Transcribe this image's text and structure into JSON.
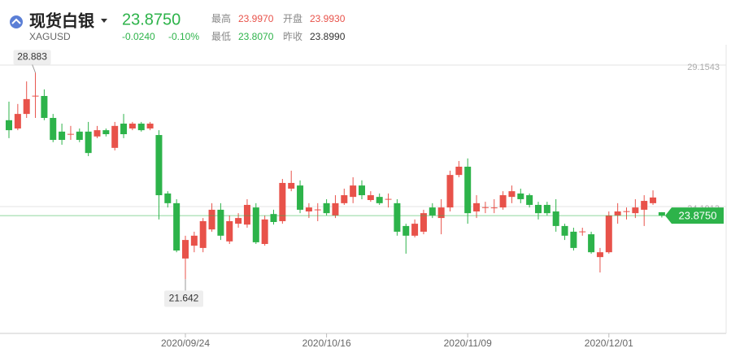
{
  "header": {
    "title": "现货白银",
    "symbol": "XAGUSD",
    "price": "23.8750",
    "change": "-0.0240",
    "change_pct": "-0.10%",
    "high_label": "最高",
    "high": "23.9970",
    "open_label": "开盘",
    "open": "23.9930",
    "low_label": "最低",
    "low": "23.8070",
    "prev_close_label": "昨收",
    "prev_close": "23.8990"
  },
  "chart_data": {
    "type": "candlestick",
    "categories": [
      null,
      null,
      null,
      null,
      null,
      null,
      null,
      null,
      null,
      null,
      null,
      null,
      null,
      null,
      null,
      null,
      null,
      null,
      null,
      null,
      "2020/09/24",
      null,
      null,
      null,
      null,
      null,
      null,
      null,
      null,
      null,
      null,
      null,
      null,
      null,
      null,
      null,
      "2020/10/16",
      null,
      null,
      null,
      null,
      null,
      null,
      null,
      null,
      null,
      null,
      null,
      null,
      null,
      null,
      null,
      "2020/11/09",
      null,
      null,
      null,
      null,
      null,
      null,
      null,
      null,
      null,
      null,
      null,
      null,
      null,
      null,
      null,
      "2020/12/01",
      null,
      null,
      null,
      null,
      null,
      null
    ],
    "open": [
      27.22,
      26.93,
      27.44,
      28.07,
      28.07,
      27.3,
      26.82,
      26.73,
      26.82,
      26.82,
      26.65,
      26.87,
      26.25,
      27.1,
      26.93,
      27.1,
      26.93,
      26.7,
      24.65,
      24.31,
      22.37,
      22.82,
      22.74,
      23.39,
      24.08,
      22.97,
      23.59,
      23.56,
      24.16,
      22.88,
      23.93,
      23.68,
      24.82,
      24.93,
      24.02,
      24.08,
      24.31,
      23.88,
      24.31,
      24.53,
      24.93,
      24.42,
      24.53,
      24.45,
      24.31,
      23.51,
      23.17,
      23.31,
      24.16,
      23.79,
      24.16,
      25.3,
      25.59,
      24.02,
      24.16,
      24.15,
      24.16,
      24.53,
      24.65,
      24.59,
      24.25,
      24.25,
      24.02,
      23.51,
      23.31,
      23.31,
      23.22,
      22.42,
      22.59,
      23.88,
      24.02,
      23.96,
      24.08,
      24.31,
      23.993
    ],
    "high": [
      27.87,
      27.79,
      28.58,
      28.883,
      28.3,
      27.44,
      27.1,
      27.02,
      26.93,
      27.16,
      27.02,
      26.93,
      27.16,
      27.44,
      27.16,
      27.16,
      27.16,
      26.87,
      24.73,
      24.45,
      23.17,
      23.31,
      23.79,
      24.31,
      24.31,
      23.88,
      23.96,
      24.45,
      24.31,
      23.88,
      24.08,
      25.16,
      25.45,
      25.11,
      24.31,
      24.31,
      24.45,
      24.59,
      24.82,
      25.22,
      25.11,
      24.73,
      24.65,
      24.65,
      24.45,
      23.59,
      23.74,
      24.08,
      24.31,
      24.45,
      25.45,
      25.79,
      25.88,
      24.59,
      24.36,
      24.45,
      24.73,
      24.93,
      24.82,
      24.65,
      24.36,
      24.36,
      24.45,
      23.59,
      23.45,
      23.45,
      23.31,
      22.74,
      24.02,
      24.31,
      24.16,
      24.45,
      24.59,
      24.76,
      23.997
    ],
    "low": [
      26.59,
      26.87,
      27.3,
      27.3,
      27.22,
      26.45,
      26.36,
      26.53,
      26.45,
      25.96,
      26.59,
      26.65,
      26.16,
      26.59,
      26.87,
      26.82,
      26.87,
      23.74,
      24.16,
      22.59,
      21.642,
      22.59,
      22.59,
      23.31,
      23.02,
      22.88,
      23.45,
      23.45,
      22.88,
      22.82,
      23.56,
      23.59,
      24.73,
      23.96,
      23.79,
      23.68,
      23.88,
      23.79,
      24.25,
      24.31,
      24.45,
      24.36,
      24.25,
      24.16,
      23.17,
      22.54,
      23.11,
      23.22,
      23.79,
      23.22,
      24.02,
      25.22,
      23.59,
      23.79,
      23.96,
      23.96,
      24.08,
      24.31,
      24.31,
      24.16,
      23.74,
      23.88,
      23.31,
      23.02,
      22.65,
      23.17,
      22.54,
      21.88,
      22.54,
      23.59,
      23.74,
      23.79,
      23.51,
      24.25,
      23.807
    ],
    "close": [
      26.87,
      27.44,
      27.96,
      28.08,
      27.3,
      26.53,
      26.53,
      26.74,
      26.53,
      26.07,
      26.87,
      26.73,
      27.02,
      26.73,
      27.1,
      26.87,
      27.1,
      24.59,
      24.31,
      22.65,
      23.02,
      23.17,
      23.68,
      24.08,
      23.17,
      23.68,
      23.79,
      24.25,
      22.94,
      23.74,
      23.65,
      25.02,
      25.02,
      24.08,
      24.16,
      24.09,
      23.96,
      24.31,
      24.59,
      24.93,
      24.59,
      24.59,
      24.31,
      24.46,
      23.31,
      23.17,
      23.59,
      23.96,
      23.88,
      24.16,
      25.3,
      25.59,
      23.96,
      24.31,
      24.17,
      24.16,
      24.59,
      24.73,
      24.45,
      24.25,
      23.96,
      23.96,
      23.51,
      23.17,
      22.74,
      23.32,
      22.59,
      22.59,
      23.88,
      24.02,
      24.03,
      24.16,
      24.39,
      24.51,
      23.875
    ],
    "up_color": "#e8524a",
    "down_color": "#2db34a",
    "ylim": [
      19.743,
      29.867
    ],
    "yticks": [
      24.1913,
      29.1543
    ],
    "grid": true
  }
}
